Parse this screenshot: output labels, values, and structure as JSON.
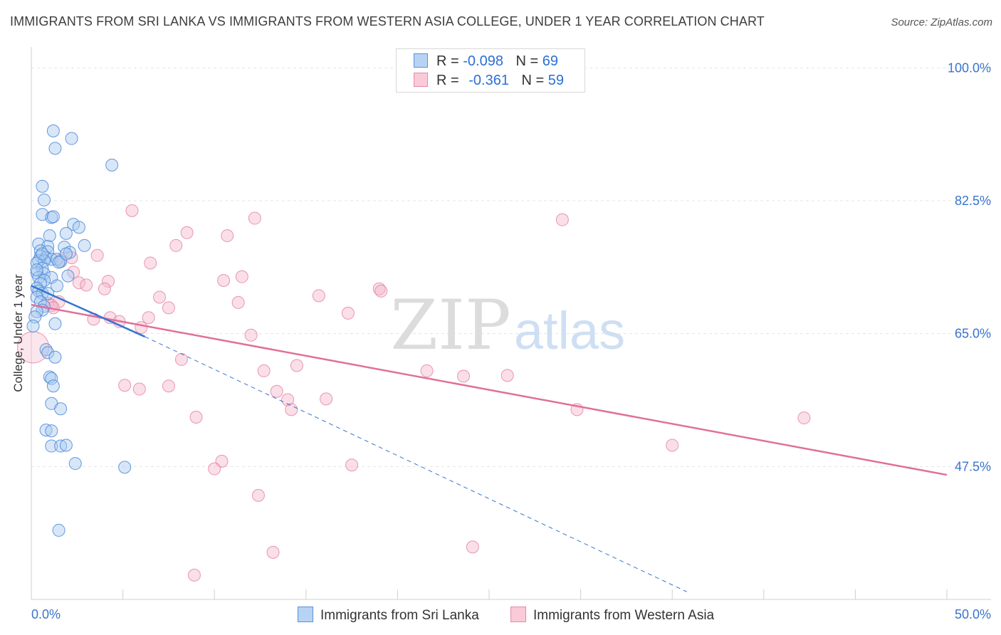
{
  "title": "IMMIGRANTS FROM SRI LANKA VS IMMIGRANTS FROM WESTERN ASIA COLLEGE, UNDER 1 YEAR CORRELATION CHART",
  "source": "Source: ZipAtlas.com",
  "watermark": {
    "zip": "ZIP",
    "atlas": "atlas"
  },
  "legend": {
    "series1": {
      "r_label": "R =",
      "r_value": "-0.098",
      "n_label": "N =",
      "n_value": "69"
    },
    "series2": {
      "r_label": "R =",
      "r_value": "-0.361",
      "n_label": "N =",
      "n_value": "59"
    }
  },
  "colors": {
    "blue_fill": "#a9c9f0",
    "blue_stroke": "#4a86d8",
    "blue_line": "#3575d0",
    "pink_fill": "#f5b8cb",
    "pink_stroke": "#e47f9f",
    "pink_line": "#e0709a",
    "axis_text": "#3a74cc",
    "grid": "#e4e4e4"
  },
  "chart_data": {
    "type": "scatter",
    "title": "IMMIGRANTS FROM SRI LANKA VS IMMIGRANTS FROM WESTERN ASIA COLLEGE, UNDER 1 YEAR CORRELATION CHART",
    "xlabel": "",
    "ylabel": "College, Under 1 year",
    "xlim": [
      0,
      50
    ],
    "ylim": [
      30,
      102
    ],
    "x_tick_labels": [
      "0.0%",
      "50.0%"
    ],
    "y_ticks": [
      47.5,
      65.0,
      82.5,
      100.0
    ],
    "y_tick_labels": [
      "47.5%",
      "65.0%",
      "82.5%",
      "100.0%"
    ],
    "legend_position": "bottom-center",
    "series": [
      {
        "name": "Immigrants from Sri Lanka",
        "color": "blue",
        "r": -0.098,
        "n": 69,
        "trend": {
          "x": [
            0.0,
            6.2
          ],
          "y": [
            71.3,
            64.6
          ]
        },
        "trend_extended": {
          "x": [
            6.2,
            35.8
          ],
          "y": [
            64.6,
            31.0
          ]
        },
        "points": [
          [
            1.2,
            91.7
          ],
          [
            2.2,
            90.7
          ],
          [
            1.3,
            89.4
          ],
          [
            4.4,
            87.2
          ],
          [
            0.6,
            84.4
          ],
          [
            0.7,
            82.6
          ],
          [
            0.6,
            80.7
          ],
          [
            1.1,
            80.3
          ],
          [
            1.2,
            80.4
          ],
          [
            2.3,
            79.4
          ],
          [
            2.6,
            79.0
          ],
          [
            1.0,
            77.9
          ],
          [
            1.9,
            78.2
          ],
          [
            2.9,
            76.6
          ],
          [
            0.4,
            76.8
          ],
          [
            0.9,
            76.5
          ],
          [
            1.8,
            76.4
          ],
          [
            0.5,
            75.9
          ],
          [
            0.9,
            75.8
          ],
          [
            2.1,
            75.7
          ],
          [
            0.5,
            75.2
          ],
          [
            0.8,
            75.0
          ],
          [
            1.1,
            74.8
          ],
          [
            1.4,
            74.8
          ],
          [
            0.4,
            74.6
          ],
          [
            0.7,
            74.6
          ],
          [
            1.6,
            74.5
          ],
          [
            0.3,
            74.3
          ],
          [
            1.5,
            74.4
          ],
          [
            0.6,
            73.6
          ],
          [
            0.3,
            73.0
          ],
          [
            0.7,
            72.9
          ],
          [
            2.0,
            72.6
          ],
          [
            1.1,
            72.4
          ],
          [
            0.4,
            72.4
          ],
          [
            0.7,
            72.0
          ],
          [
            0.5,
            71.6
          ],
          [
            1.4,
            71.3
          ],
          [
            0.3,
            71.0
          ],
          [
            0.4,
            70.6
          ],
          [
            0.6,
            70.3
          ],
          [
            0.9,
            70.3
          ],
          [
            0.3,
            69.8
          ],
          [
            0.5,
            69.2
          ],
          [
            0.7,
            68.6
          ],
          [
            0.6,
            68.1
          ],
          [
            0.3,
            67.9
          ],
          [
            0.2,
            67.2
          ],
          [
            1.3,
            66.3
          ],
          [
            0.1,
            66.0
          ],
          [
            0.8,
            62.9
          ],
          [
            0.9,
            62.5
          ],
          [
            1.3,
            61.9
          ],
          [
            1.0,
            59.3
          ],
          [
            1.1,
            59.1
          ],
          [
            1.2,
            58.1
          ],
          [
            1.1,
            55.8
          ],
          [
            1.6,
            55.1
          ],
          [
            0.8,
            52.3
          ],
          [
            1.1,
            52.2
          ],
          [
            1.1,
            50.2
          ],
          [
            1.6,
            50.2
          ],
          [
            1.9,
            50.3
          ],
          [
            2.4,
            47.9
          ],
          [
            5.1,
            47.4
          ],
          [
            1.5,
            39.1
          ],
          [
            0.6,
            75.5
          ],
          [
            1.9,
            75.5
          ],
          [
            0.3,
            73.4
          ]
        ]
      },
      {
        "name": "Immigrants from Western Asia",
        "color": "pink",
        "r": -0.361,
        "n": 59,
        "trend": {
          "x": [
            0.0,
            50.0
          ],
          "y": [
            68.8,
            46.4
          ]
        },
        "points": [
          [
            5.5,
            81.2
          ],
          [
            12.2,
            80.2
          ],
          [
            29.0,
            80.0
          ],
          [
            8.5,
            78.3
          ],
          [
            10.7,
            77.9
          ],
          [
            7.9,
            76.6
          ],
          [
            3.6,
            75.3
          ],
          [
            2.2,
            75.0
          ],
          [
            1.6,
            74.7
          ],
          [
            6.5,
            74.3
          ],
          [
            2.3,
            73.1
          ],
          [
            11.5,
            72.5
          ],
          [
            10.5,
            72.0
          ],
          [
            2.6,
            71.7
          ],
          [
            3.0,
            71.4
          ],
          [
            4.2,
            71.9
          ],
          [
            4.0,
            70.9
          ],
          [
            19.0,
            70.9
          ],
          [
            19.1,
            70.6
          ],
          [
            15.7,
            70.0
          ],
          [
            7.0,
            69.8
          ],
          [
            11.3,
            69.1
          ],
          [
            1.5,
            69.2
          ],
          [
            0.9,
            69.0
          ],
          [
            1.1,
            68.7
          ],
          [
            1.2,
            68.4
          ],
          [
            7.5,
            68.4
          ],
          [
            17.3,
            67.7
          ],
          [
            4.3,
            67.1
          ],
          [
            3.4,
            66.9
          ],
          [
            6.4,
            67.1
          ],
          [
            4.8,
            66.6
          ],
          [
            6.0,
            65.8
          ],
          [
            12.0,
            64.8
          ],
          [
            8.2,
            61.6
          ],
          [
            12.7,
            60.1
          ],
          [
            14.5,
            60.8
          ],
          [
            21.6,
            60.1
          ],
          [
            23.6,
            59.4
          ],
          [
            26.0,
            59.5
          ],
          [
            5.1,
            58.2
          ],
          [
            5.9,
            57.7
          ],
          [
            7.5,
            58.1
          ],
          [
            13.4,
            57.4
          ],
          [
            14.0,
            56.3
          ],
          [
            16.1,
            56.4
          ],
          [
            14.2,
            55.0
          ],
          [
            9.0,
            54.0
          ],
          [
            29.8,
            55.0
          ],
          [
            42.2,
            53.9
          ],
          [
            35.0,
            50.3
          ],
          [
            10.4,
            48.2
          ],
          [
            10.0,
            47.2
          ],
          [
            17.5,
            47.7
          ],
          [
            12.4,
            43.7
          ],
          [
            13.2,
            36.2
          ],
          [
            24.1,
            36.9
          ],
          [
            8.9,
            33.2
          ],
          [
            0.1,
            63.2
          ]
        ]
      }
    ]
  },
  "bottom_legend": {
    "series1": "Immigrants from Sri Lanka",
    "series2": "Immigrants from Western Asia"
  }
}
